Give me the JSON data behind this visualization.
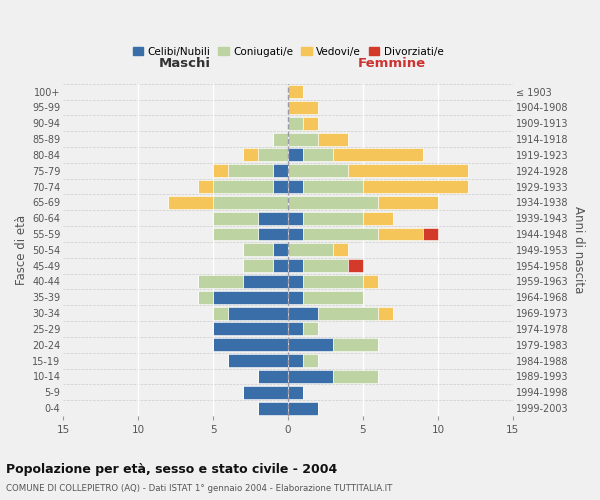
{
  "age_groups": [
    "0-4",
    "5-9",
    "10-14",
    "15-19",
    "20-24",
    "25-29",
    "30-34",
    "35-39",
    "40-44",
    "45-49",
    "50-54",
    "55-59",
    "60-64",
    "65-69",
    "70-74",
    "75-79",
    "80-84",
    "85-89",
    "90-94",
    "95-99",
    "100+"
  ],
  "birth_years": [
    "1999-2003",
    "1994-1998",
    "1989-1993",
    "1984-1988",
    "1979-1983",
    "1974-1978",
    "1969-1973",
    "1964-1968",
    "1959-1963",
    "1954-1958",
    "1949-1953",
    "1944-1948",
    "1939-1943",
    "1934-1938",
    "1929-1933",
    "1924-1928",
    "1919-1923",
    "1914-1918",
    "1909-1913",
    "1904-1908",
    "≤ 1903"
  ],
  "maschi": {
    "celibi": [
      2,
      3,
      2,
      4,
      5,
      5,
      4,
      5,
      3,
      1,
      1,
      2,
      2,
      0,
      1,
      1,
      0,
      0,
      0,
      0,
      0
    ],
    "coniugati": [
      0,
      0,
      0,
      0,
      0,
      0,
      1,
      1,
      3,
      2,
      2,
      3,
      3,
      5,
      4,
      3,
      2,
      1,
      0,
      0,
      0
    ],
    "vedovi": [
      0,
      0,
      0,
      0,
      0,
      0,
      0,
      0,
      0,
      0,
      0,
      0,
      0,
      3,
      1,
      1,
      1,
      0,
      0,
      0,
      0
    ],
    "divorziati": [
      0,
      0,
      0,
      0,
      0,
      0,
      0,
      0,
      0,
      0,
      0,
      0,
      0,
      0,
      0,
      0,
      0,
      0,
      0,
      0,
      0
    ]
  },
  "femmine": {
    "nubili": [
      2,
      1,
      3,
      1,
      3,
      1,
      2,
      1,
      1,
      1,
      0,
      1,
      1,
      0,
      1,
      0,
      1,
      0,
      0,
      0,
      0
    ],
    "coniugate": [
      0,
      0,
      3,
      1,
      3,
      1,
      4,
      4,
      4,
      3,
      3,
      5,
      4,
      6,
      4,
      4,
      2,
      2,
      1,
      0,
      0
    ],
    "vedove": [
      0,
      0,
      0,
      0,
      0,
      0,
      1,
      0,
      1,
      0,
      1,
      3,
      2,
      4,
      7,
      8,
      6,
      2,
      1,
      2,
      1
    ],
    "divorziate": [
      0,
      0,
      0,
      0,
      0,
      0,
      0,
      0,
      0,
      1,
      0,
      1,
      0,
      0,
      0,
      0,
      0,
      0,
      0,
      0,
      0
    ]
  },
  "colors": {
    "celibi_nubili": "#3a6ea8",
    "coniugati": "#bdd4a2",
    "vedovi": "#f5c55a",
    "divorziati": "#d43a2a"
  },
  "title": "Popolazione per età, sesso e stato civile - 2004",
  "subtitle": "COMUNE DI COLLEPIETRO (AQ) - Dati ISTAT 1° gennaio 2004 - Elaborazione TUTTITALIA.IT",
  "xlabel_left": "Maschi",
  "xlabel_right": "Femmine",
  "ylabel_left": "Fasce di età",
  "ylabel_right": "Anni di nascita",
  "legend_labels": [
    "Celibi/Nubili",
    "Coniugati/e",
    "Vedovi/e",
    "Divorziati/e"
  ],
  "xlim": 15,
  "background_color": "#f0f0f0"
}
